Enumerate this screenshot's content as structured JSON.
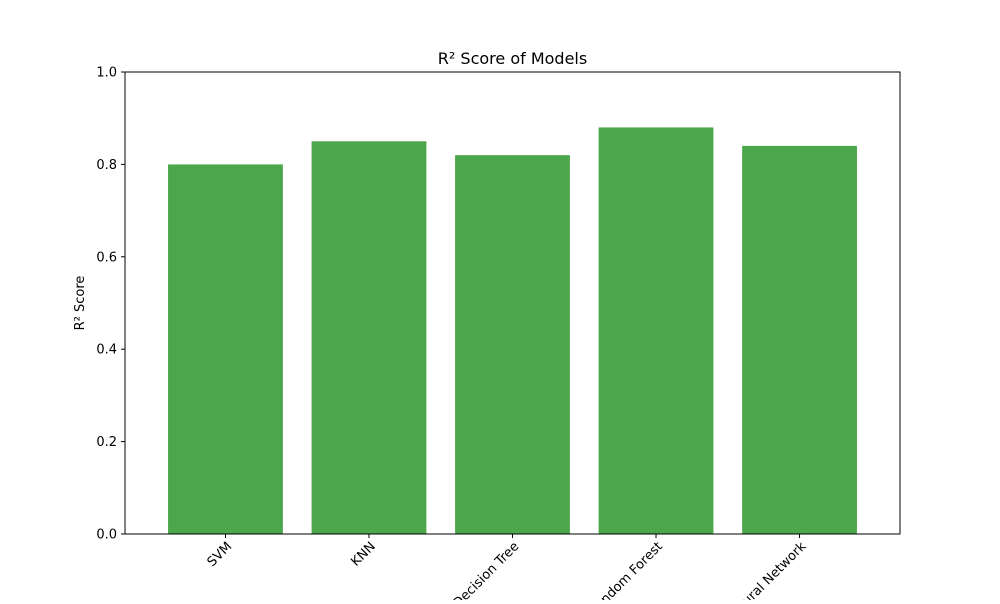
{
  "chart_data": {
    "type": "bar",
    "title": "R² Score of Models",
    "xlabel": "",
    "ylabel": "R² Score",
    "categories": [
      "SVM",
      "KNN",
      "Decision Tree",
      "Random Forest",
      "Neural Network"
    ],
    "values": [
      0.8,
      0.85,
      0.82,
      0.88,
      0.84
    ],
    "ylim": [
      0,
      1.0
    ],
    "yticks": [
      "0.0",
      "0.2",
      "0.4",
      "0.6",
      "0.8",
      "1.0"
    ],
    "bar_color": "#4ca64c",
    "grid": false,
    "legend": "none",
    "xtick_rotation": "45 degrees"
  }
}
